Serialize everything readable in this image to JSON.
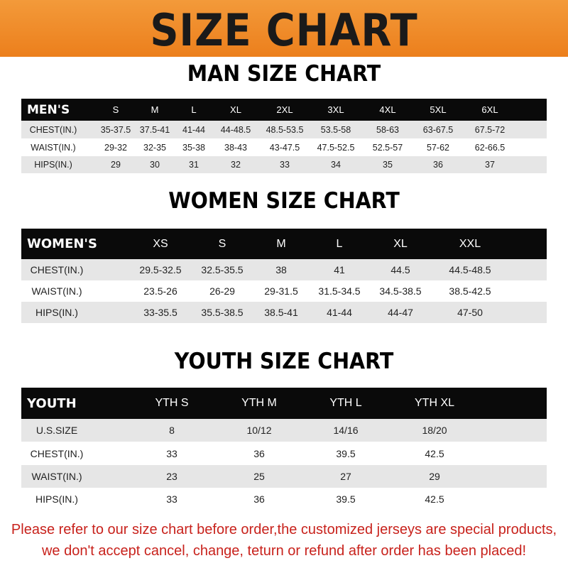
{
  "banner_title": "SIZE CHART",
  "men": {
    "title": "MAN SIZE CHART",
    "header": [
      "MEN'S",
      "S",
      "M",
      "L",
      "XL",
      "2XL",
      "3XL",
      "4XL",
      "5XL",
      "6XL"
    ],
    "rows": [
      [
        "CHEST(IN.)",
        "35-37.5",
        "37.5-41",
        "41-44",
        "44-48.5",
        "48.5-53.5",
        "53.5-58",
        "58-63",
        "63-67.5",
        "67.5-72"
      ],
      [
        "WAIST(IN.)",
        "29-32",
        "32-35",
        "35-38",
        "38-43",
        "43-47.5",
        "47.5-52.5",
        "52.5-57",
        "57-62",
        "62-66.5"
      ],
      [
        "HIPS(IN.)",
        "29",
        "30",
        "31",
        "32",
        "33",
        "34",
        "35",
        "36",
        "37"
      ]
    ]
  },
  "women": {
    "title": "WOMEN SIZE CHART",
    "header": [
      "WOMEN'S",
      "XS",
      "S",
      "M",
      "L",
      "XL",
      "XXL"
    ],
    "rows": [
      [
        "CHEST(IN.)",
        "29.5-32.5",
        "32.5-35.5",
        "38",
        "41",
        "44.5",
        "44.5-48.5"
      ],
      [
        "WAIST(IN.)",
        "23.5-26",
        "26-29",
        "29-31.5",
        "31.5-34.5",
        "34.5-38.5",
        "38.5-42.5"
      ],
      [
        "HIPS(IN.)",
        "33-35.5",
        "35.5-38.5",
        "38.5-41",
        "41-44",
        "44-47",
        "47-50"
      ]
    ]
  },
  "youth": {
    "title": "YOUTH SIZE CHART",
    "header": [
      "YOUTH",
      "YTH S",
      "YTH M",
      "YTH L",
      "YTH XL"
    ],
    "rows": [
      [
        "U.S.SIZE",
        "8",
        "10/12",
        "14/16",
        "18/20"
      ],
      [
        "CHEST(IN.)",
        "33",
        "36",
        "39.5",
        "42.5"
      ],
      [
        "WAIST(IN.)",
        "23",
        "25",
        "27",
        "29"
      ],
      [
        "HIPS(IN.)",
        "33",
        "36",
        "39.5",
        "42.5"
      ]
    ]
  },
  "footer": {
    "line1": "Please refer to our size chart before order,the customized jerseys are special products,",
    "line2": "we don't accept cancel, change, teturn or refund after order has been placed!"
  },
  "colors": {
    "banner": "#ee8526",
    "header_row": "#0a0a0a",
    "stripe": "#e6e6e6",
    "notice": "#c8221c"
  }
}
